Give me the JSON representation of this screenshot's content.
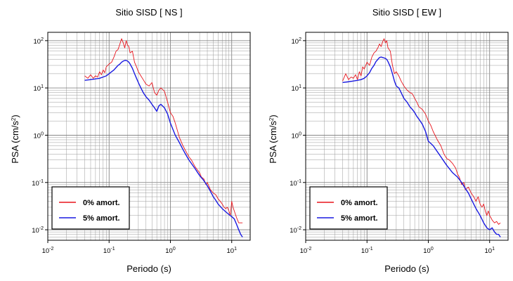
{
  "chart_data": [
    {
      "type": "line",
      "title": "Sitio SISD [ NS ]",
      "xlabel": "Periodo (s)",
      "ylabel_parts": [
        "PSA (cm/s",
        "2",
        ")"
      ],
      "x_scale": "log",
      "y_scale": "log",
      "xlim": [
        0.01,
        20
      ],
      "ylim": [
        0.006,
        150
      ],
      "grid": true,
      "legend_position": "bottom-left",
      "x_tick_labels": [
        {
          "value": 0.01,
          "base": "10",
          "exp": "-2"
        },
        {
          "value": 0.1,
          "base": "10",
          "exp": "-1"
        },
        {
          "value": 1,
          "base": "10",
          "exp": "0"
        },
        {
          "value": 10,
          "base": "10",
          "exp": "1"
        }
      ],
      "y_tick_labels": [
        {
          "value": 0.01,
          "base": "10",
          "exp": "-2"
        },
        {
          "value": 0.1,
          "base": "10",
          "exp": "-1"
        },
        {
          "value": 1,
          "base": "10",
          "exp": "0"
        },
        {
          "value": 10,
          "base": "10",
          "exp": "1"
        },
        {
          "value": 100,
          "base": "10",
          "exp": "2"
        }
      ],
      "series": [
        {
          "name": "0% amort.",
          "color": "#e8141c",
          "x": [
            0.04,
            0.045,
            0.05,
            0.055,
            0.06,
            0.065,
            0.07,
            0.075,
            0.08,
            0.085,
            0.09,
            0.1,
            0.11,
            0.12,
            0.13,
            0.14,
            0.15,
            0.16,
            0.17,
            0.18,
            0.19,
            0.2,
            0.21,
            0.22,
            0.24,
            0.26,
            0.28,
            0.3,
            0.33,
            0.36,
            0.4,
            0.45,
            0.5,
            0.55,
            0.6,
            0.65,
            0.7,
            0.8,
            0.9,
            1.0,
            1.1,
            1.2,
            1.4,
            1.6,
            1.8,
            2.0,
            2.2,
            2.5,
            2.8,
            3.0,
            3.2,
            3.5,
            3.8,
            4.0,
            4.5,
            5.0,
            5.5,
            6.0,
            6.5,
            7.0,
            7.5,
            8.0,
            8.5,
            9.0,
            9.5,
            10,
            10.5,
            11,
            12,
            13,
            14,
            15
          ],
          "y": [
            18,
            16,
            19,
            16,
            18,
            17,
            22,
            19,
            24,
            21,
            28,
            32,
            35,
            45,
            60,
            65,
            85,
            110,
            90,
            70,
            100,
            80,
            75,
            55,
            60,
            35,
            28,
            22,
            18,
            15,
            12,
            11,
            13,
            8,
            7,
            9,
            10,
            8.5,
            5,
            3,
            2.5,
            1.8,
            0.9,
            0.6,
            0.45,
            0.35,
            0.3,
            0.22,
            0.18,
            0.16,
            0.13,
            0.12,
            0.09,
            0.1,
            0.07,
            0.06,
            0.055,
            0.045,
            0.04,
            0.035,
            0.03,
            0.028,
            0.03,
            0.025,
            0.02,
            0.04,
            0.03,
            0.025,
            0.018,
            0.014,
            0.014,
            0.014
          ]
        },
        {
          "name": "5% amort.",
          "color": "#1a1ae0",
          "x": [
            0.04,
            0.05,
            0.06,
            0.07,
            0.08,
            0.09,
            0.1,
            0.11,
            0.12,
            0.13,
            0.14,
            0.15,
            0.16,
            0.17,
            0.18,
            0.19,
            0.2,
            0.21,
            0.22,
            0.24,
            0.26,
            0.28,
            0.3,
            0.33,
            0.36,
            0.4,
            0.45,
            0.5,
            0.55,
            0.6,
            0.65,
            0.7,
            0.8,
            0.9,
            1.0,
            1.2,
            1.4,
            1.6,
            1.8,
            2.0,
            2.5,
            3.0,
            3.5,
            4.0,
            4.5,
            5.0,
            5.5,
            6.0,
            7.0,
            8.0,
            9.0,
            10,
            11,
            12,
            13,
            14,
            15
          ],
          "y": [
            14.5,
            15,
            15.5,
            16,
            17,
            18,
            20,
            22,
            24,
            27,
            30,
            32,
            35,
            37,
            38,
            38,
            37,
            35,
            32,
            26,
            20,
            16,
            13,
            10,
            8,
            6.5,
            5.5,
            4.5,
            3.8,
            3.2,
            4.2,
            4.5,
            3.8,
            2.8,
            1.8,
            1.0,
            0.7,
            0.5,
            0.38,
            0.3,
            0.2,
            0.14,
            0.11,
            0.085,
            0.065,
            0.05,
            0.042,
            0.035,
            0.028,
            0.024,
            0.021,
            0.019,
            0.017,
            0.013,
            0.01,
            0.008,
            0.007
          ]
        }
      ]
    },
    {
      "type": "line",
      "title": "Sitio SISD [ EW ]",
      "xlabel": "Periodo (s)",
      "ylabel_parts": [
        "PSA (cm/s",
        "2",
        ")"
      ],
      "x_scale": "log",
      "y_scale": "log",
      "xlim": [
        0.01,
        20
      ],
      "ylim": [
        0.006,
        150
      ],
      "grid": true,
      "legend_position": "bottom-left",
      "x_tick_labels": [
        {
          "value": 0.01,
          "base": "10",
          "exp": "-2"
        },
        {
          "value": 0.1,
          "base": "10",
          "exp": "-1"
        },
        {
          "value": 1,
          "base": "10",
          "exp": "0"
        },
        {
          "value": 10,
          "base": "10",
          "exp": "1"
        }
      ],
      "y_tick_labels": [
        {
          "value": 0.01,
          "base": "10",
          "exp": "-2"
        },
        {
          "value": 0.1,
          "base": "10",
          "exp": "-1"
        },
        {
          "value": 1,
          "base": "10",
          "exp": "0"
        },
        {
          "value": 10,
          "base": "10",
          "exp": "1"
        },
        {
          "value": 100,
          "base": "10",
          "exp": "2"
        }
      ],
      "series": [
        {
          "name": "0% amort.",
          "color": "#e8141c",
          "x": [
            0.04,
            0.045,
            0.05,
            0.055,
            0.06,
            0.065,
            0.07,
            0.075,
            0.08,
            0.085,
            0.09,
            0.1,
            0.11,
            0.12,
            0.13,
            0.14,
            0.15,
            0.16,
            0.17,
            0.18,
            0.19,
            0.2,
            0.21,
            0.22,
            0.24,
            0.26,
            0.28,
            0.3,
            0.33,
            0.36,
            0.4,
            0.45,
            0.5,
            0.55,
            0.6,
            0.65,
            0.7,
            0.8,
            0.9,
            1.0,
            1.1,
            1.2,
            1.4,
            1.6,
            1.8,
            2.0,
            2.2,
            2.5,
            2.8,
            3.0,
            3.2,
            3.5,
            3.8,
            4.0,
            4.5,
            5.0,
            5.5,
            6.0,
            6.5,
            7.0,
            7.5,
            8.0,
            8.5,
            9.0,
            9.5,
            10,
            10.5,
            11,
            12,
            13,
            14,
            15
          ],
          "y": [
            14,
            20,
            15,
            17,
            16,
            19,
            15,
            22,
            18,
            28,
            25,
            35,
            30,
            45,
            55,
            60,
            70,
            85,
            75,
            95,
            110,
            90,
            100,
            70,
            60,
            30,
            20,
            22,
            18,
            14,
            11,
            9,
            8,
            7.5,
            6,
            5,
            4,
            3.5,
            2.8,
            2.0,
            1.6,
            1.2,
            0.8,
            0.6,
            0.4,
            0.32,
            0.3,
            0.25,
            0.2,
            0.15,
            0.13,
            0.09,
            0.1,
            0.07,
            0.08,
            0.06,
            0.05,
            0.04,
            0.05,
            0.035,
            0.03,
            0.035,
            0.025,
            0.02,
            0.025,
            0.02,
            0.018,
            0.016,
            0.014,
            0.015,
            0.013,
            0.014
          ]
        },
        {
          "name": "5% amort.",
          "color": "#1a1ae0",
          "x": [
            0.04,
            0.05,
            0.06,
            0.07,
            0.08,
            0.09,
            0.1,
            0.11,
            0.12,
            0.13,
            0.14,
            0.15,
            0.16,
            0.17,
            0.18,
            0.19,
            0.2,
            0.21,
            0.22,
            0.24,
            0.26,
            0.28,
            0.3,
            0.33,
            0.36,
            0.4,
            0.45,
            0.5,
            0.55,
            0.6,
            0.65,
            0.7,
            0.8,
            0.9,
            1.0,
            1.2,
            1.4,
            1.6,
            1.8,
            2.0,
            2.5,
            3.0,
            3.5,
            4.0,
            4.5,
            5.0,
            5.5,
            6.0,
            7.0,
            8.0,
            9.0,
            10,
            11,
            12,
            13,
            14,
            15
          ],
          "y": [
            13,
            13.5,
            14,
            14.5,
            15,
            16,
            18,
            21,
            26,
            30,
            36,
            40,
            44,
            45,
            44,
            43,
            42,
            40,
            36,
            28,
            20,
            14,
            11,
            10,
            8,
            6,
            5,
            4,
            3.5,
            3,
            2.5,
            2.2,
            1.7,
            1.2,
            0.75,
            0.6,
            0.45,
            0.35,
            0.28,
            0.23,
            0.16,
            0.13,
            0.1,
            0.075,
            0.06,
            0.045,
            0.035,
            0.028,
            0.02,
            0.014,
            0.011,
            0.01,
            0.011,
            0.009,
            0.008,
            0.008,
            0.007
          ]
        }
      ]
    }
  ]
}
